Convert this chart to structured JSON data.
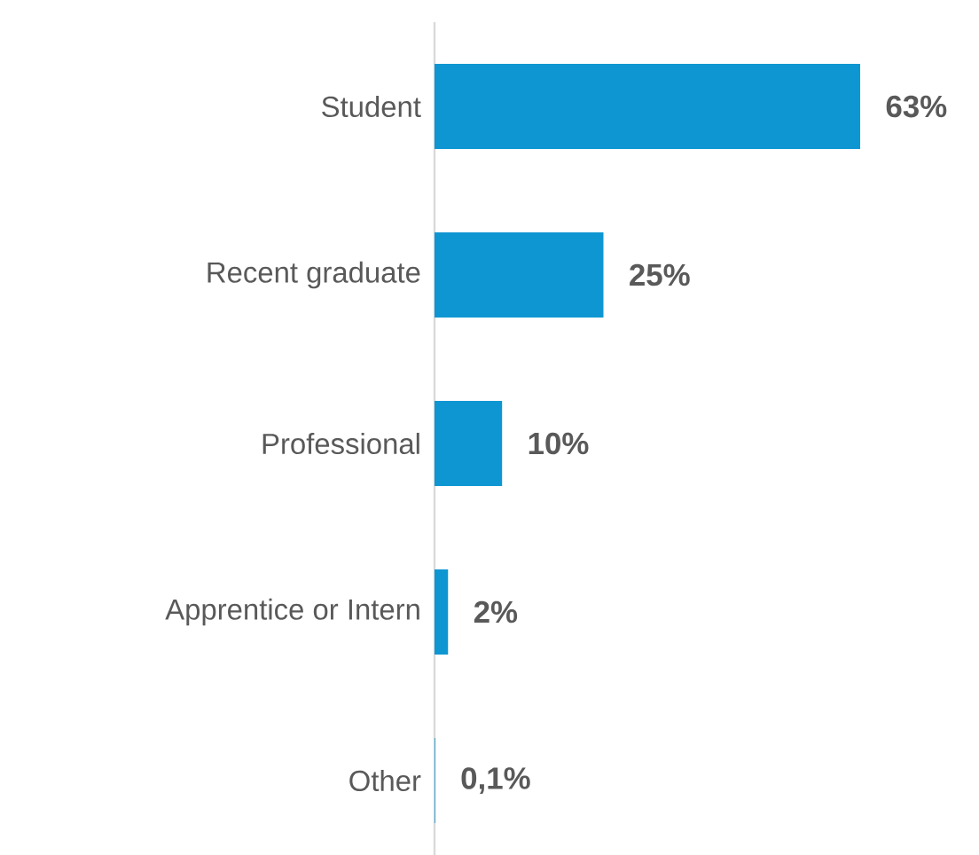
{
  "chart_data": {
    "type": "bar",
    "orientation": "horizontal",
    "categories": [
      "Student",
      "Recent graduate",
      "Professional",
      "Apprentice or Intern",
      "Other"
    ],
    "values": [
      63,
      25,
      10,
      2,
      0.1
    ],
    "value_labels": [
      "63%",
      "25%",
      "10%",
      "2%",
      "0,1%"
    ],
    "color": "#0e96d2"
  }
}
